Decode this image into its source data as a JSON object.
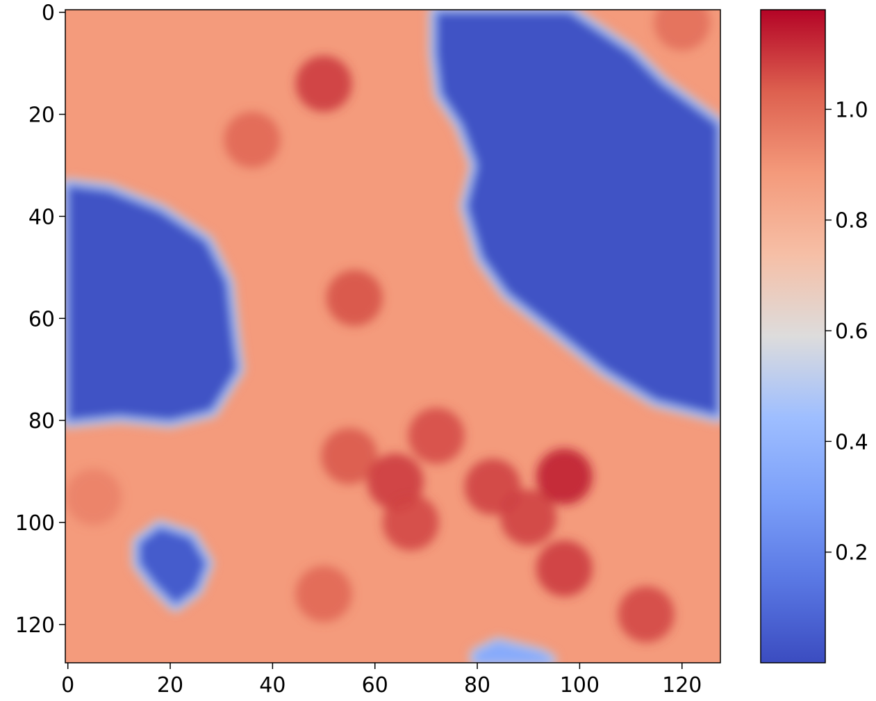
{
  "chart_data": {
    "type": "heatmap",
    "title": "",
    "xlabel": "",
    "ylabel": "",
    "grid_size": [
      128,
      128
    ],
    "xlim": [
      0,
      127
    ],
    "ylim": [
      127,
      0
    ],
    "x_ticks": [
      0,
      20,
      40,
      60,
      80,
      100,
      120
    ],
    "y_ticks": [
      0,
      20,
      40,
      60,
      80,
      100,
      120
    ],
    "x_tick_labels": [
      "0",
      "20",
      "40",
      "60",
      "80",
      "100",
      "120"
    ],
    "y_tick_labels": [
      "0",
      "20",
      "40",
      "60",
      "80",
      "100",
      "120"
    ],
    "colormap": "coolwarm",
    "color_range": [
      0.0,
      1.18
    ],
    "colorbar": {
      "ticks": [
        0.2,
        0.4,
        0.6,
        0.8,
        1.0
      ],
      "tick_labels": [
        "0.2",
        "0.4",
        "0.6",
        "0.8",
        "1.0"
      ],
      "placement": "right"
    },
    "colors": {
      "low": "#3b4cc0",
      "mid": "#dddcdc",
      "high": "#b40426"
    },
    "background_value": 0.88,
    "regions": [
      {
        "name": "low-region-upper-right",
        "value": 0.02,
        "polygon": [
          [
            72,
            0
          ],
          [
            98,
            0
          ],
          [
            110,
            8
          ],
          [
            116,
            14
          ],
          [
            127,
            22
          ],
          [
            127,
            79
          ],
          [
            115,
            76
          ],
          [
            105,
            70
          ],
          [
            95,
            62
          ],
          [
            86,
            55
          ],
          [
            81,
            48
          ],
          [
            78,
            38
          ],
          [
            80,
            30
          ],
          [
            77,
            22
          ],
          [
            73,
            16
          ],
          [
            72,
            8
          ]
        ]
      },
      {
        "name": "low-region-left",
        "value": 0.02,
        "polygon": [
          [
            0,
            34
          ],
          [
            8,
            35
          ],
          [
            18,
            39
          ],
          [
            27,
            45
          ],
          [
            31,
            53
          ],
          [
            32,
            62
          ],
          [
            33,
            70
          ],
          [
            28,
            78
          ],
          [
            20,
            80
          ],
          [
            10,
            79
          ],
          [
            0,
            80
          ]
        ]
      },
      {
        "name": "low-region-lower-left",
        "value": 0.05,
        "polygon": [
          [
            14,
            104
          ],
          [
            18,
            101
          ],
          [
            24,
            103
          ],
          [
            27,
            108
          ],
          [
            25,
            113
          ],
          [
            21,
            116
          ],
          [
            17,
            112
          ],
          [
            14,
            108
          ]
        ]
      },
      {
        "name": "mid-region-bottom",
        "value": 0.35,
        "polygon": [
          [
            80,
            126
          ],
          [
            84,
            124
          ],
          [
            92,
            126
          ],
          [
            94,
            127
          ],
          [
            80,
            127
          ]
        ]
      }
    ],
    "hot_spots": [
      {
        "x": 50,
        "y": 14,
        "value": 1.1
      },
      {
        "x": 36,
        "y": 25,
        "value": 1.02
      },
      {
        "x": 56,
        "y": 56,
        "value": 1.06
      },
      {
        "x": 55,
        "y": 87,
        "value": 1.05
      },
      {
        "x": 72,
        "y": 83,
        "value": 1.07
      },
      {
        "x": 64,
        "y": 92,
        "value": 1.1
      },
      {
        "x": 67,
        "y": 100,
        "value": 1.08
      },
      {
        "x": 83,
        "y": 93,
        "value": 1.09
      },
      {
        "x": 90,
        "y": 99,
        "value": 1.09
      },
      {
        "x": 97,
        "y": 91,
        "value": 1.15
      },
      {
        "x": 97,
        "y": 109,
        "value": 1.1
      },
      {
        "x": 113,
        "y": 118,
        "value": 1.08
      },
      {
        "x": 50,
        "y": 114,
        "value": 1.02
      },
      {
        "x": 120,
        "y": 2,
        "value": 1.0
      },
      {
        "x": 5,
        "y": 95,
        "value": 0.95
      }
    ]
  }
}
